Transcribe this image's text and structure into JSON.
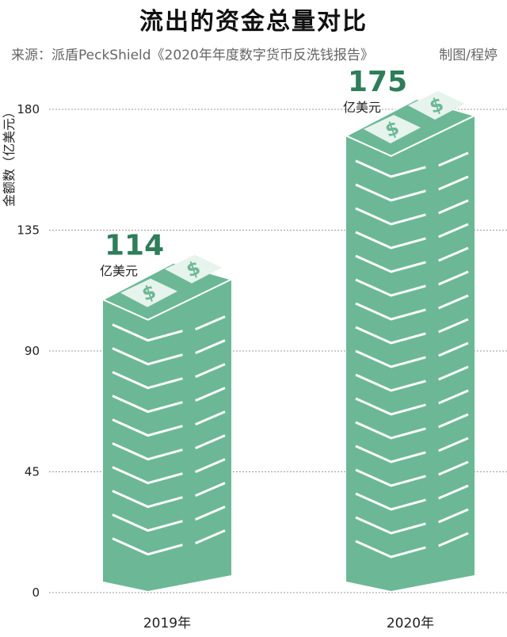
{
  "title": "流出的资金总量对比",
  "source": "来源：派盾PeckShield《2020年年度数字货币反洗钱报告》",
  "credit": "制图/程婷",
  "chart_data": {
    "type": "bar",
    "categories": [
      "2019年",
      "2020年"
    ],
    "values": [
      114,
      175
    ],
    "data_labels": [
      "114",
      "175"
    ],
    "unit_label": "亿美元",
    "ylabel": "金额数（亿美元）",
    "xlabel": "",
    "ylim": [
      0,
      180
    ],
    "yticks": [
      0,
      45,
      90,
      135,
      180
    ],
    "grid": true,
    "colors": {
      "bar": "#6cb896",
      "bar_edge": "#ffffff",
      "label": "#2e7d5b",
      "text": "#222222",
      "grid": "#9a9a9a",
      "banknote": "#e7f3ed"
    }
  }
}
